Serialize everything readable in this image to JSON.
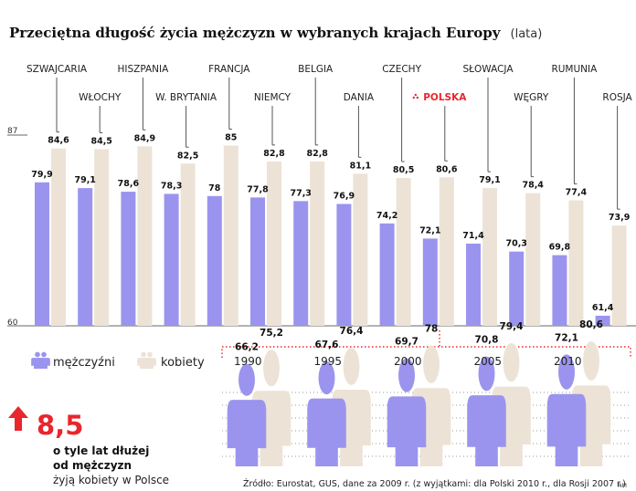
{
  "chart_data": [
    {
      "type": "bar",
      "title": "Przeciętna długość życia mężczyzn w wybranych krajach Europy",
      "unit": "(lata)",
      "categories": [
        "SZWAJCARIA",
        "WŁOCHY",
        "HISZPANIA",
        "W. BRYTANIA",
        "FRANCJA",
        "NIEMCY",
        "BELGIA",
        "DANIA",
        "CZECHY",
        "POLSKA",
        "SŁOWACJA",
        "WĘGRY",
        "RUMUNIA",
        "ROSJA"
      ],
      "highlight_category": "POLSKA",
      "series": [
        {
          "name": "mężczyźni",
          "values": [
            79.9,
            79.1,
            78.6,
            78.3,
            78,
            77.8,
            77.3,
            76.9,
            74.2,
            72.1,
            71.4,
            70.3,
            69.8,
            61.4
          ]
        },
        {
          "name": "kobiety",
          "values": [
            84.6,
            84.5,
            84.9,
            82.5,
            85,
            82.8,
            82.8,
            81.1,
            80.5,
            80.6,
            79.1,
            78.4,
            77.4,
            73.9
          ]
        }
      ],
      "value_labels": {
        "men": [
          "79,9",
          "79,1",
          "78,6",
          "78,3",
          "78",
          "77,8",
          "77,3",
          "76,9",
          "74,2",
          "72,1",
          "71,4",
          "70,3",
          "69,8",
          "61,4"
        ],
        "women": [
          "84,6",
          "84,5",
          "84,9",
          "82,5",
          "85",
          "82,8",
          "82,8",
          "81,1",
          "80,5",
          "80,6",
          "79,1",
          "78,4",
          "77,4",
          "73,9"
        ]
      },
      "yticks": [
        "87",
        "60"
      ],
      "ylim": [
        60,
        87
      ],
      "colors": {
        "men": "#9b94ee",
        "women": "#ece3d6",
        "highlight": "#e8262c",
        "axis": "#666666",
        "leader": "#555555"
      }
    },
    {
      "type": "bar",
      "title": "POLSKA",
      "categories": [
        "1990",
        "1995",
        "2000",
        "2005",
        "2010"
      ],
      "series": [
        {
          "name": "mężczyźni",
          "values": [
            66.2,
            67.6,
            69.7,
            70.8,
            72.1
          ]
        },
        {
          "name": "kobiety",
          "values": [
            75.2,
            76.4,
            78,
            79.4,
            80.6
          ]
        }
      ],
      "value_labels": {
        "men": [
          "66,2",
          "67,6",
          "69,7",
          "70,8",
          "72,1"
        ],
        "women": [
          "75,2",
          "76,4",
          "78",
          "79,4",
          "80,6"
        ]
      }
    }
  ],
  "legend": {
    "men_label": "mężczyźni",
    "women_label": "kobiety"
  },
  "callout": {
    "value": "8,5",
    "line1": "o tyle lat dłużej",
    "line2": "od mężczyzn",
    "line3": "żyją kobiety w Polsce"
  },
  "source": "Źródło: Eurostat, GUS, dane za 2009 r. (z wyjątkami: dla Polski 2010 r., dla Rosji 2007 r.)",
  "credit": "RM"
}
